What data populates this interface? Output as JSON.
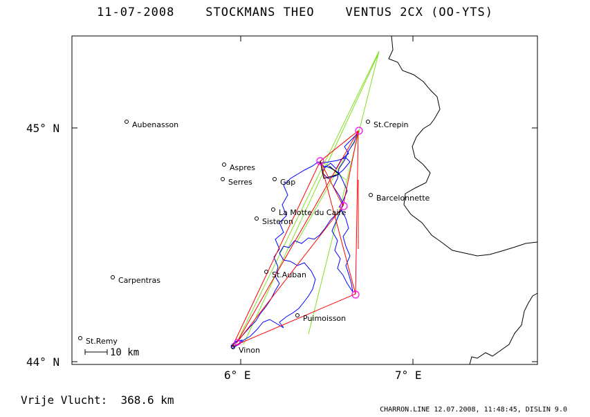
{
  "header": {
    "date": "11-07-2008",
    "pilot": "STOCKMANS THEO",
    "glider": "VENTUS 2CX (OO-YTS)"
  },
  "axes": {
    "y_ticks": [
      "45° N",
      "44° N"
    ],
    "x_ticks": [
      "6° E",
      "7° E"
    ]
  },
  "scale_bar": {
    "label": "10 km"
  },
  "places": [
    {
      "name": "Aubenasson"
    },
    {
      "name": "St.Crepin"
    },
    {
      "name": "Aspres"
    },
    {
      "name": "Serres"
    },
    {
      "name": "Gap"
    },
    {
      "name": "Barcelonnette"
    },
    {
      "name": "La Motte du Caire"
    },
    {
      "name": "Sisteron"
    },
    {
      "name": "Carpentras"
    },
    {
      "name": "St.Auban"
    },
    {
      "name": "Puimoisson"
    },
    {
      "name": "St.Remy"
    },
    {
      "name": "Vinon"
    }
  ],
  "distance": {
    "label": "Vrije Vlucht:",
    "value": "368.6 km"
  },
  "footer": {
    "text": "CHARRON.LINE 12.07.2008, 11:48:45, DISLIN 9.0"
  },
  "colors": {
    "track": "#0000ff",
    "legs": "#ff0000",
    "sectors": "#80e020",
    "turnpoints": "#ff00ff",
    "border": "#000000"
  }
}
